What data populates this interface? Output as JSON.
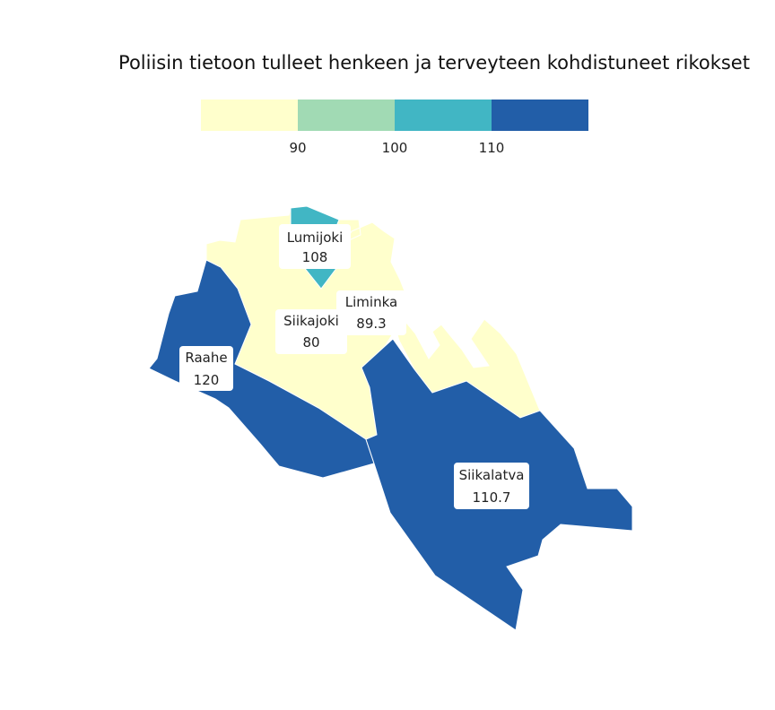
{
  "title": "Poliisin tietoon tulleet henkeen ja terveyteen kohdistuneet rikokset",
  "legend": {
    "colors": [
      "#ffffcc",
      "#a1dab4",
      "#41b6c4",
      "#225ea8"
    ],
    "ticks": [
      "90",
      "100",
      "110"
    ]
  },
  "regions": [
    {
      "id": "siikajoki",
      "name": "Siikajoki",
      "value": "80",
      "color": "#ffffcc"
    },
    {
      "id": "liminka",
      "name": "Liminka",
      "value": "89.3",
      "color": "#ffffcc"
    },
    {
      "id": "lumijoki",
      "name": "Lumijoki",
      "value": "108",
      "color": "#41b6c4"
    },
    {
      "id": "raahe",
      "name": "Raahe",
      "value": "120",
      "color": "#225ea8"
    },
    {
      "id": "siikalatva",
      "name": "Siikalatva",
      "value": "110.7",
      "color": "#225ea8"
    }
  ]
}
